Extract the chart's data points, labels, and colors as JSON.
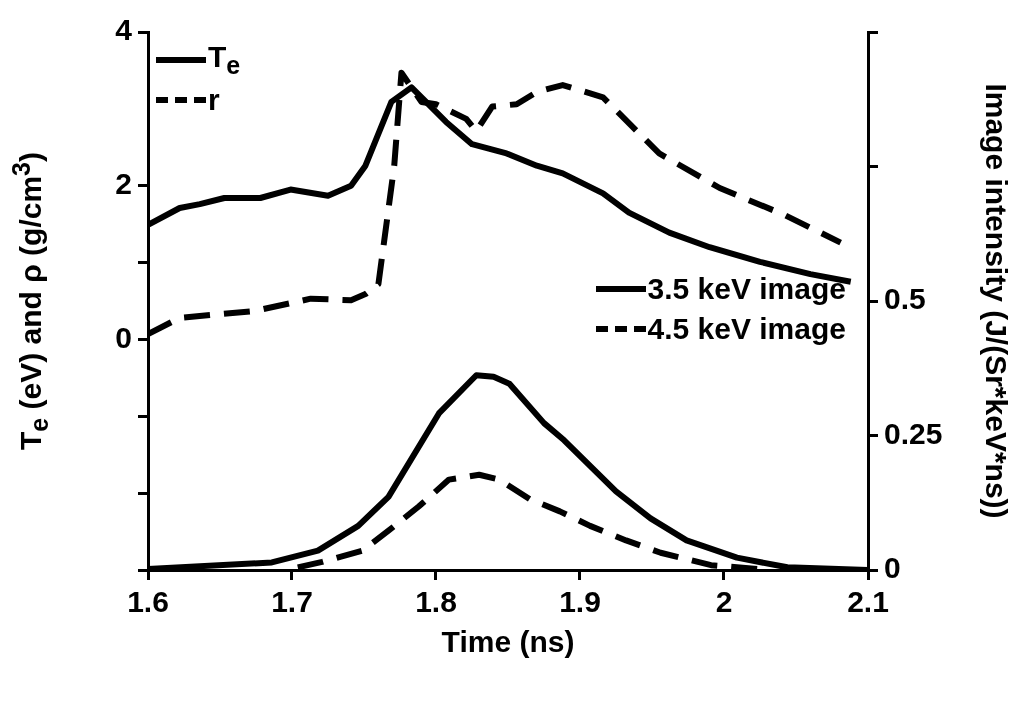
{
  "chart_data": {
    "type": "line",
    "xlabel": "Time (ns)",
    "ylabel": "T$_{e}$ (eV) and ρ (g/cm$^{3}$)",
    "y2label": "Image intensity (J/(Sr*keV*ns))",
    "xlim": [
      1.6,
      2.1
    ],
    "xticks": [
      1.6,
      1.7,
      1.8,
      1.9,
      2,
      2.1
    ],
    "ylim": [
      -3,
      4
    ],
    "yticks": [
      {
        "value": -3,
        "label": null
      },
      {
        "value": -2,
        "label": null
      },
      {
        "value": -1,
        "label": null
      },
      0,
      {
        "value": 1,
        "label": null
      },
      2,
      4
    ],
    "y2lim": [
      0,
      1
    ],
    "y2ticks": [
      0,
      0.25,
      0.5,
      {
        "value": 0.75,
        "label": null
      },
      {
        "value": 1,
        "label": null
      }
    ],
    "grid": false,
    "legend": "top left",
    "series": [
      {
        "name": "T$_{e}$",
        "color": "#000000",
        "line_style": "solid",
        "x": [
          1.6,
          1.622,
          1.636,
          1.653,
          1.678,
          1.699,
          1.725,
          1.741,
          1.751,
          1.769,
          1.783,
          1.807,
          1.825,
          1.849,
          1.87,
          1.888,
          1.916,
          1.934,
          1.962,
          1.99,
          2.025,
          2.06,
          2.088
        ],
        "values": [
          1.49,
          1.71,
          1.76,
          1.84,
          1.84,
          1.95,
          1.87,
          2.0,
          2.26,
          3.09,
          3.28,
          2.83,
          2.54,
          2.42,
          2.26,
          2.16,
          1.9,
          1.65,
          1.39,
          1.2,
          1.01,
          0.85,
          0.75
        ]
      },
      {
        "name": "r",
        "color": "#000000",
        "line_style": "dashed",
        "x": [
          1.6,
          1.622,
          1.674,
          1.713,
          1.741,
          1.751,
          1.76,
          1.771,
          1.776,
          1.79,
          1.8,
          1.821,
          1.828,
          1.839,
          1.856,
          1.87,
          1.888,
          1.916,
          1.955,
          1.997,
          2.042,
          2.081
        ],
        "values": [
          0.07,
          0.28,
          0.37,
          0.53,
          0.51,
          0.59,
          0.72,
          2.26,
          3.47,
          3.09,
          3.06,
          2.87,
          2.71,
          3.03,
          3.06,
          3.22,
          3.31,
          3.15,
          2.42,
          1.97,
          1.62,
          1.26
        ]
      },
      {
        "name": "3.5 keV image",
        "color": "#000000",
        "line_style": "solid",
        "axis": "y2",
        "x": [
          1.6,
          1.686,
          1.718,
          1.746,
          1.767,
          1.802,
          1.828,
          1.84,
          1.851,
          1.875,
          1.889,
          1.925,
          1.949,
          1.974,
          2.009,
          2.044,
          2.1
        ],
        "values": [
          0.002,
          0.014,
          0.036,
          0.082,
          0.136,
          0.291,
          0.362,
          0.359,
          0.346,
          0.273,
          0.241,
          0.146,
          0.096,
          0.055,
          0.023,
          0.005,
          0
        ]
      },
      {
        "name": "4.5 keV image",
        "color": "#000000",
        "line_style": "dashed",
        "axis": "y2",
        "x": [
          1.704,
          1.721,
          1.749,
          1.767,
          1.788,
          1.809,
          1.83,
          1.844,
          1.865,
          1.886,
          1.907,
          1.932,
          1.956,
          1.991,
          2.023
        ],
        "values": [
          0.005,
          0.015,
          0.036,
          0.073,
          0.118,
          0.168,
          0.177,
          0.168,
          0.132,
          0.109,
          0.082,
          0.055,
          0.032,
          0.009,
          0.002
        ]
      }
    ]
  }
}
